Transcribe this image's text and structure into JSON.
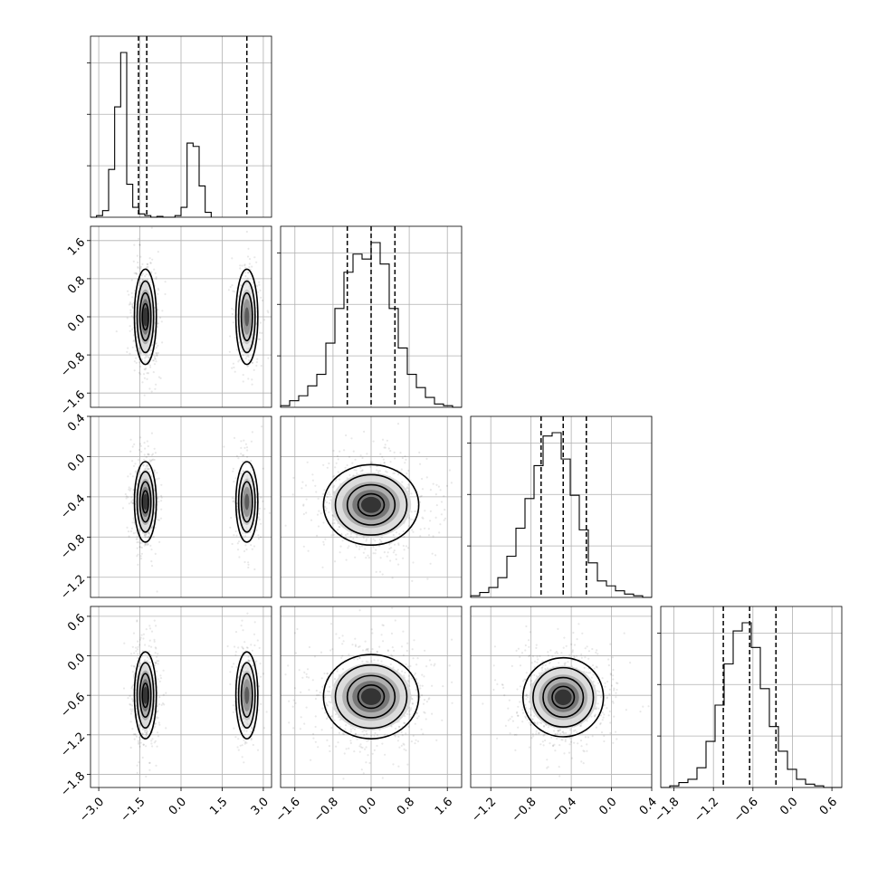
{
  "chart_data": {
    "type": "corner",
    "parameters": [
      {
        "range": [
          -3.3,
          3.3
        ],
        "ticks": [
          "-3.0",
          "-1.5",
          "0.0",
          "1.5",
          "3.0"
        ],
        "tick_values": [
          -3.0,
          -1.5,
          0.0,
          1.5,
          3.0
        ],
        "quantiles": [
          -1.55,
          -1.25,
          2.4
        ],
        "histogram": {
          "bin_start": -3.3,
          "bin_width": 0.22,
          "counts": [
            0,
            0.01,
            0.04,
            0.29,
            0.67,
            1.0,
            0.2,
            0.06,
            0.02,
            0.01,
            0,
            0.005,
            0,
            0,
            0.01,
            0.06,
            0.45,
            0.43,
            0.19,
            0.03
          ]
        }
      },
      {
        "range": [
          -1.9,
          1.9
        ],
        "ticks": [
          "-1.6",
          "-0.8",
          "0.0",
          "0.8",
          "1.6"
        ],
        "tick_values": [
          -1.6,
          -0.8,
          0.0,
          0.8,
          1.6
        ],
        "quantiles": [
          -0.5,
          0.0,
          0.5
        ],
        "histogram": {
          "bin_start": -1.9,
          "bin_width": 0.19,
          "counts": [
            0.01,
            0.04,
            0.07,
            0.13,
            0.2,
            0.39,
            0.6,
            0.82,
            0.93,
            0.9,
            1.0,
            0.87,
            0.6,
            0.36,
            0.2,
            0.12,
            0.06,
            0.02,
            0.01,
            0.0
          ]
        }
      },
      {
        "range": [
          -1.4,
          0.4
        ],
        "ticks": [
          "-1.2",
          "-0.8",
          "-0.4",
          "0.0",
          "0.4"
        ],
        "tick_values": [
          -1.2,
          -0.8,
          -0.4,
          0.0,
          0.4
        ],
        "quantiles": [
          -0.7,
          -0.48,
          -0.25
        ],
        "histogram": {
          "bin_start": -1.4,
          "bin_width": 0.09,
          "counts": [
            0.01,
            0.03,
            0.06,
            0.12,
            0.25,
            0.42,
            0.6,
            0.8,
            0.98,
            1.0,
            0.84,
            0.62,
            0.41,
            0.21,
            0.1,
            0.07,
            0.04,
            0.02,
            0.01,
            0.0
          ]
        }
      },
      {
        "range": [
          -2.0,
          0.75
        ],
        "ticks": [
          "-1.8",
          "-1.2",
          "-0.6",
          "0.0",
          "0.6"
        ],
        "tick_values": [
          -1.8,
          -1.2,
          -0.6,
          0.0,
          0.6
        ],
        "quantiles": [
          -1.05,
          -0.65,
          -0.25
        ],
        "histogram": {
          "bin_start": -2.0,
          "bin_width": 0.1375,
          "counts": [
            0.0,
            0.01,
            0.03,
            0.05,
            0.12,
            0.28,
            0.5,
            0.75,
            0.95,
            1.0,
            0.85,
            0.6,
            0.37,
            0.22,
            0.11,
            0.05,
            0.02,
            0.01,
            0.0,
            0.0
          ]
        }
      }
    ],
    "blobs": [
      {
        "i": 0,
        "j": 1,
        "pairs": [
          [
            -1.3,
            0.0,
            0.2,
            0.5,
            0,
            0.7
          ],
          [
            2.4,
            0.0,
            0.2,
            0.5,
            0,
            0.35
          ]
        ]
      },
      {
        "i": 0,
        "j": 2,
        "pairs": [
          [
            -1.3,
            -0.45,
            0.2,
            0.2,
            0,
            0.7
          ],
          [
            2.4,
            -0.45,
            0.2,
            0.2,
            0,
            0.35
          ]
        ]
      },
      {
        "i": 0,
        "j": 3,
        "pairs": [
          [
            -1.3,
            -0.6,
            0.2,
            0.33,
            0,
            0.7
          ],
          [
            2.4,
            -0.6,
            0.2,
            0.33,
            0,
            0.35
          ]
        ]
      },
      {
        "i": 1,
        "j": 2,
        "pairs": [
          [
            0.0,
            -0.48,
            0.5,
            0.2,
            0,
            1.0
          ]
        ]
      },
      {
        "i": 1,
        "j": 3,
        "pairs": [
          [
            0.0,
            -0.62,
            0.5,
            0.32,
            0,
            1.0
          ]
        ]
      },
      {
        "i": 2,
        "j": 3,
        "pairs": [
          [
            -0.48,
            -0.63,
            0.2,
            0.3,
            0,
            1.0
          ]
        ]
      }
    ]
  }
}
